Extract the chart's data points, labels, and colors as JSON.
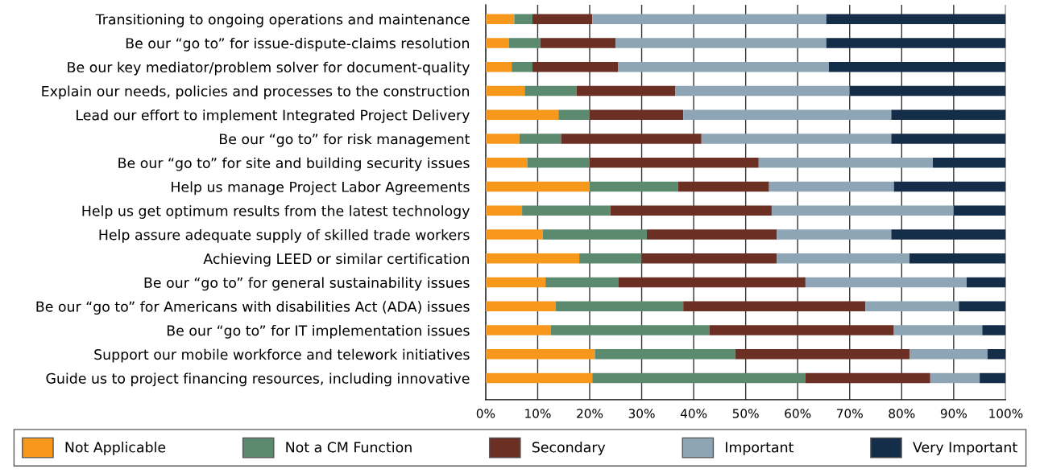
{
  "chart_data": {
    "type": "bar",
    "orientation": "horizontal",
    "stacked": true,
    "grid": "x",
    "legend": "bottom",
    "categories": [
      "Transitioning to ongoing operations and maintenance",
      "Be our “go to” for issue-dispute-claims resolution",
      "Be our key mediator/problem solver for document-quality",
      "Explain our needs, policies and processes to the construction",
      "Lead our effort to implement Integrated Project Delivery",
      "Be our “go to” for risk management",
      "Be our “go to” for site and building security issues",
      "Help us manage Project Labor Agreements",
      "Help us get optimum results from the latest technology",
      "Help assure adequate supply of skilled trade workers",
      "Achieving LEED or similar certification",
      "Be our “go to” for general sustainability issues",
      "Be our “go to” for Americans with disabilities Act (ADA) issues",
      "Be our “go to” for IT implementation issues",
      "Support our mobile workforce and telework initiatives",
      "Guide us to project financing resources, including innovative"
    ],
    "xlim": [
      0,
      100
    ],
    "xticks": [
      {
        "value": 0,
        "label": "0%"
      },
      {
        "value": 10,
        "label": "10%"
      },
      {
        "value": 20,
        "label": "20%"
      },
      {
        "value": 30,
        "label": "30%"
      },
      {
        "value": 40,
        "label": "40%"
      },
      {
        "value": 50,
        "label": "50%"
      },
      {
        "value": 60,
        "label": "60%"
      },
      {
        "value": 70,
        "label": "70%"
      },
      {
        "value": 80,
        "label": "80%"
      },
      {
        "value": 90,
        "label": "90%"
      },
      {
        "value": 100,
        "label": "100%"
      }
    ],
    "series": [
      {
        "name": "Not Applicable",
        "color": "#f7981d",
        "values": [
          5.5,
          4.5,
          5,
          7.5,
          14,
          6.5,
          8,
          20,
          7,
          11,
          18,
          11.5,
          13.5,
          12.5,
          21,
          20.5
        ]
      },
      {
        "name": "Not a CM Function",
        "color": "#5b8a6e",
        "values": [
          3.5,
          6,
          4,
          10,
          6,
          8,
          12,
          17,
          17,
          20,
          12,
          14,
          24.5,
          30.5,
          27,
          41
        ]
      },
      {
        "name": "Secondary",
        "color": "#6b2f23",
        "values": [
          11.5,
          14.5,
          16.5,
          19,
          18,
          27,
          32.5,
          17.5,
          31,
          25,
          26,
          36,
          35,
          35.5,
          33.5,
          24
        ]
      },
      {
        "name": "Important",
        "color": "#8ea5b6",
        "values": [
          45,
          40.5,
          40.5,
          33.5,
          40,
          36.5,
          33.5,
          24,
          35,
          22,
          25.5,
          31,
          18,
          17,
          15,
          9.5
        ]
      },
      {
        "name": "Very Important",
        "color": "#142d48",
        "values": [
          34.5,
          34.5,
          34,
          30,
          22,
          22,
          14,
          21.5,
          10,
          22,
          18.5,
          7.5,
          9,
          4.5,
          3.5,
          5
        ]
      }
    ]
  }
}
